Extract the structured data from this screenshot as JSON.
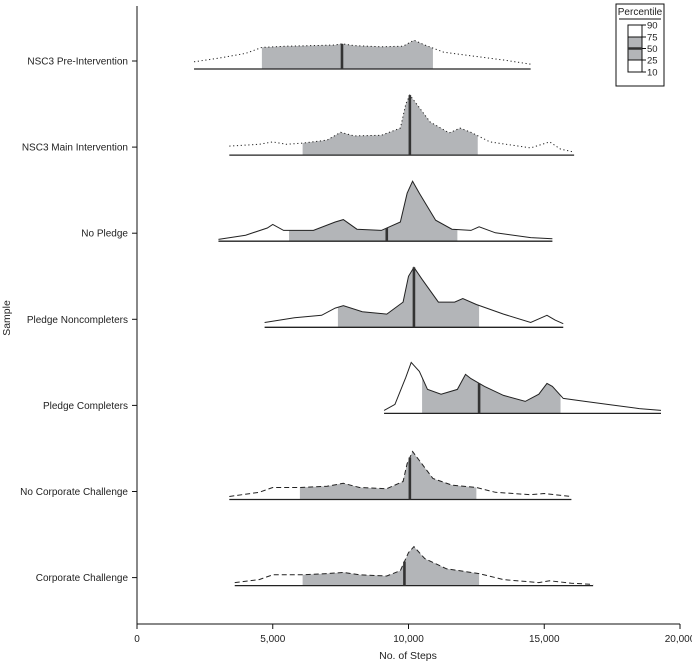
{
  "chart_data": {
    "type": "ridgeline",
    "title": "",
    "xlabel": "No. of Steps",
    "ylabel": "Sample",
    "xlim": [
      0,
      20000
    ],
    "xticks": [
      0,
      5000,
      10000,
      15000,
      20000
    ],
    "xtick_labels": [
      "0",
      "5,000",
      "10,000",
      "15,000",
      "20,000"
    ],
    "grid": false,
    "legend": {
      "title": "Percentile",
      "placement": "top-right",
      "levels": [
        "90",
        "75",
        "50",
        "25",
        "10"
      ]
    },
    "series": [
      {
        "name": "NSC3 Pre-Intervention",
        "line_style": "dotted",
        "range": [
          2100,
          14500
        ],
        "p10": 4600,
        "p25": 4600,
        "p50": 7550,
        "p75": 10900,
        "p90": 10900,
        "density": [
          [
            2100,
            0.12
          ],
          [
            3000,
            0.18
          ],
          [
            4000,
            0.26
          ],
          [
            4600,
            0.36
          ],
          [
            5500,
            0.38
          ],
          [
            6500,
            0.39
          ],
          [
            7300,
            0.4
          ],
          [
            7550,
            0.42
          ],
          [
            8000,
            0.39
          ],
          [
            9000,
            0.37
          ],
          [
            9800,
            0.38
          ],
          [
            10200,
            0.48
          ],
          [
            10600,
            0.4
          ],
          [
            11300,
            0.28
          ],
          [
            12300,
            0.22
          ],
          [
            13500,
            0.15
          ],
          [
            14500,
            0.08
          ]
        ]
      },
      {
        "name": "NSC3 Main Intervention",
        "line_style": "dotted",
        "range": [
          3400,
          16100
        ],
        "p10": 6100,
        "p25": 6100,
        "p50": 10050,
        "p75": 12550,
        "p90": 12550,
        "density": [
          [
            3400,
            0.15
          ],
          [
            4500,
            0.18
          ],
          [
            5000,
            0.22
          ],
          [
            5500,
            0.18
          ],
          [
            6100,
            0.2
          ],
          [
            7000,
            0.25
          ],
          [
            7500,
            0.38
          ],
          [
            8000,
            0.32
          ],
          [
            9000,
            0.33
          ],
          [
            9700,
            0.45
          ],
          [
            9900,
            0.85
          ],
          [
            10050,
            1.0
          ],
          [
            10300,
            0.85
          ],
          [
            10800,
            0.55
          ],
          [
            11500,
            0.37
          ],
          [
            11900,
            0.45
          ],
          [
            12300,
            0.38
          ],
          [
            13000,
            0.22
          ],
          [
            14500,
            0.12
          ],
          [
            15200,
            0.22
          ],
          [
            15600,
            0.1
          ],
          [
            16100,
            0.05
          ]
        ]
      },
      {
        "name": "No Pledge",
        "line_style": "solid",
        "range": [
          3000,
          15300
        ],
        "p10": 5600,
        "p25": 5600,
        "p50": 9200,
        "p75": 11800,
        "p90": 11800,
        "density": [
          [
            3000,
            0.03
          ],
          [
            4000,
            0.1
          ],
          [
            4800,
            0.22
          ],
          [
            5000,
            0.28
          ],
          [
            5400,
            0.18
          ],
          [
            6500,
            0.18
          ],
          [
            7300,
            0.32
          ],
          [
            7600,
            0.36
          ],
          [
            8100,
            0.2
          ],
          [
            9000,
            0.18
          ],
          [
            9700,
            0.32
          ],
          [
            9950,
            0.8
          ],
          [
            10150,
            1.0
          ],
          [
            10400,
            0.8
          ],
          [
            11000,
            0.35
          ],
          [
            11600,
            0.2
          ],
          [
            12300,
            0.18
          ],
          [
            12600,
            0.24
          ],
          [
            13200,
            0.14
          ],
          [
            14500,
            0.06
          ],
          [
            15300,
            0.04
          ]
        ]
      },
      {
        "name": "Pledge Noncompleters",
        "line_style": "solid",
        "range": [
          4700,
          15700
        ],
        "p10": 7400,
        "p25": 7400,
        "p50": 10200,
        "p75": 12600,
        "p90": 12600,
        "density": [
          [
            4700,
            0.08
          ],
          [
            5800,
            0.16
          ],
          [
            6800,
            0.2
          ],
          [
            7300,
            0.32
          ],
          [
            7600,
            0.36
          ],
          [
            8300,
            0.26
          ],
          [
            9200,
            0.22
          ],
          [
            9800,
            0.42
          ],
          [
            10000,
            0.85
          ],
          [
            10200,
            1.0
          ],
          [
            10500,
            0.8
          ],
          [
            11100,
            0.42
          ],
          [
            11700,
            0.42
          ],
          [
            12000,
            0.48
          ],
          [
            12500,
            0.38
          ],
          [
            13500,
            0.22
          ],
          [
            14500,
            0.08
          ],
          [
            14900,
            0.16
          ],
          [
            15100,
            0.2
          ],
          [
            15400,
            0.12
          ],
          [
            15700,
            0.06
          ]
        ]
      },
      {
        "name": "Pledge Completers",
        "line_style": "solid",
        "range": [
          9100,
          19300
        ],
        "p10": 10500,
        "p25": 10500,
        "p50": 12600,
        "p75": 15600,
        "p90": 15600,
        "density": [
          [
            9100,
            0.05
          ],
          [
            9500,
            0.15
          ],
          [
            9900,
            0.6
          ],
          [
            10100,
            0.85
          ],
          [
            10400,
            0.7
          ],
          [
            10700,
            0.4
          ],
          [
            11200,
            0.32
          ],
          [
            11800,
            0.4
          ],
          [
            12100,
            0.65
          ],
          [
            12300,
            0.58
          ],
          [
            12800,
            0.45
          ],
          [
            13500,
            0.3
          ],
          [
            14300,
            0.2
          ],
          [
            14800,
            0.32
          ],
          [
            15100,
            0.5
          ],
          [
            15300,
            0.45
          ],
          [
            15700,
            0.25
          ],
          [
            16500,
            0.2
          ],
          [
            17500,
            0.14
          ],
          [
            18500,
            0.08
          ],
          [
            19300,
            0.05
          ]
        ]
      },
      {
        "name": "No Corporate Challenge",
        "line_style": "dashed",
        "range": [
          3400,
          16000
        ],
        "p10": 6000,
        "p25": 6000,
        "p50": 10050,
        "p75": 12500,
        "p90": 12500,
        "density": [
          [
            3400,
            0.05
          ],
          [
            4500,
            0.12
          ],
          [
            5000,
            0.2
          ],
          [
            6000,
            0.2
          ],
          [
            7000,
            0.22
          ],
          [
            7600,
            0.27
          ],
          [
            8200,
            0.2
          ],
          [
            9200,
            0.18
          ],
          [
            9800,
            0.3
          ],
          [
            9950,
            0.6
          ],
          [
            10150,
            0.8
          ],
          [
            10400,
            0.65
          ],
          [
            10900,
            0.35
          ],
          [
            11600,
            0.24
          ],
          [
            12500,
            0.2
          ],
          [
            13200,
            0.12
          ],
          [
            14500,
            0.08
          ],
          [
            15000,
            0.1
          ],
          [
            16000,
            0.05
          ]
        ]
      },
      {
        "name": "Corporate Challenge",
        "line_style": "dashed",
        "range": [
          3600,
          16800
        ],
        "p10": 6100,
        "p25": 6100,
        "p50": 9850,
        "p75": 12600,
        "p90": 12600,
        "density": [
          [
            3600,
            0.05
          ],
          [
            4500,
            0.1
          ],
          [
            5000,
            0.18
          ],
          [
            6100,
            0.18
          ],
          [
            7000,
            0.2
          ],
          [
            7600,
            0.22
          ],
          [
            8200,
            0.18
          ],
          [
            9200,
            0.16
          ],
          [
            9700,
            0.25
          ],
          [
            10000,
            0.55
          ],
          [
            10200,
            0.65
          ],
          [
            10600,
            0.45
          ],
          [
            11400,
            0.28
          ],
          [
            12600,
            0.2
          ],
          [
            13500,
            0.1
          ],
          [
            14800,
            0.05
          ],
          [
            15200,
            0.08
          ],
          [
            16000,
            0.04
          ],
          [
            16800,
            0.02
          ]
        ]
      }
    ]
  }
}
